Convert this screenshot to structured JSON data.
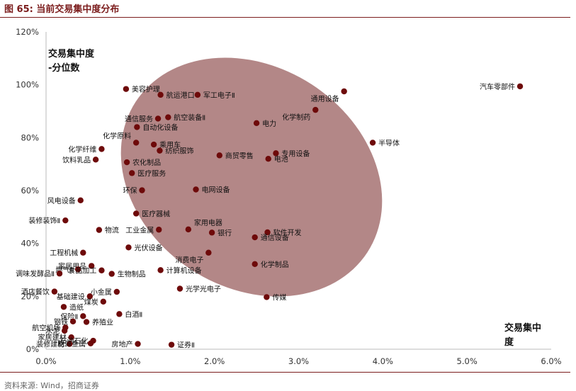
{
  "figure": {
    "title": "图 65:  当前交易集中度分布",
    "source": "资料来源: Wind，招商证券"
  },
  "colors": {
    "accent": "#7b1c1c",
    "point": "#6e0a0a",
    "ellipse": "#a67272"
  },
  "chart_data": {
    "type": "scatter",
    "xlabel": "交易集中度",
    "ylabel": "交易集中度-分位数",
    "xlim": [
      0,
      0.06
    ],
    "ylim": [
      0,
      1.2
    ],
    "xticks": [
      "0.0%",
      "1.0%",
      "2.0%",
      "3.0%",
      "4.0%",
      "5.0%",
      "6.0%"
    ],
    "yticks": [
      "0%",
      "20%",
      "40%",
      "60%",
      "80%",
      "100%",
      "120%"
    ],
    "grid": false,
    "points": [
      {
        "label": "汽车零部件",
        "x": 0.0563,
        "y": 0.994
      },
      {
        "label": "通用设备",
        "x": 0.0354,
        "y": 0.975
      },
      {
        "label": "化学制药",
        "x": 0.032,
        "y": 0.905
      },
      {
        "label": "半导体",
        "x": 0.0388,
        "y": 0.781
      },
      {
        "label": "美容护理",
        "x": 0.0095,
        "y": 0.984
      },
      {
        "label": "航运港口",
        "x": 0.0136,
        "y": 0.962
      },
      {
        "label": "军工电子Ⅱ",
        "x": 0.018,
        "y": 0.962
      },
      {
        "label": "通信服务",
        "x": 0.0133,
        "y": 0.872
      },
      {
        "label": "航空装备Ⅱ",
        "x": 0.0145,
        "y": 0.877
      },
      {
        "label": "电力",
        "x": 0.025,
        "y": 0.855
      },
      {
        "label": "自动化设备",
        "x": 0.0108,
        "y": 0.84
      },
      {
        "label": "化学原料",
        "x": 0.0107,
        "y": 0.781
      },
      {
        "label": "乘用车",
        "x": 0.0128,
        "y": 0.774
      },
      {
        "label": "化学纤维",
        "x": 0.0066,
        "y": 0.757
      },
      {
        "label": "纺织服饰",
        "x": 0.0135,
        "y": 0.751
      },
      {
        "label": "商贸零售",
        "x": 0.0206,
        "y": 0.733
      },
      {
        "label": "专用设备",
        "x": 0.0273,
        "y": 0.741
      },
      {
        "label": "电池",
        "x": 0.0264,
        "y": 0.72
      },
      {
        "label": "饮料乳品",
        "x": 0.0059,
        "y": 0.717
      },
      {
        "label": "农化制品",
        "x": 0.0096,
        "y": 0.707
      },
      {
        "label": "医疗服务",
        "x": 0.0102,
        "y": 0.666
      },
      {
        "label": "风电设备",
        "x": 0.0041,
        "y": 0.563
      },
      {
        "label": "环保",
        "x": 0.0114,
        "y": 0.601
      },
      {
        "label": "电网设备",
        "x": 0.0178,
        "y": 0.604
      },
      {
        "label": "装修装饰Ⅱ",
        "x": 0.0023,
        "y": 0.487
      },
      {
        "label": "医疗器械",
        "x": 0.0107,
        "y": 0.513
      },
      {
        "label": "物流",
        "x": 0.0063,
        "y": 0.451
      },
      {
        "label": "家用电器",
        "x": 0.0169,
        "y": 0.453
      },
      {
        "label": "工业金属",
        "x": 0.0134,
        "y": 0.452
      },
      {
        "label": "银行",
        "x": 0.0197,
        "y": 0.441
      },
      {
        "label": "软件开发",
        "x": 0.0263,
        "y": 0.442
      },
      {
        "label": "通信设备",
        "x": 0.0248,
        "y": 0.423
      },
      {
        "label": "光伏设备",
        "x": 0.0098,
        "y": 0.385
      },
      {
        "label": "工程机械",
        "x": 0.0044,
        "y": 0.365
      },
      {
        "label": "消费电子",
        "x": 0.0193,
        "y": 0.365
      },
      {
        "label": "家居用品",
        "x": 0.0054,
        "y": 0.315
      },
      {
        "label": "化学制品",
        "x": 0.0248,
        "y": 0.322
      },
      {
        "label": "燃气Ⅱ",
        "x": 0.0038,
        "y": 0.302
      },
      {
        "label": "计算机设备",
        "x": 0.0136,
        "y": 0.299
      },
      {
        "label": "食品加工",
        "x": 0.0066,
        "y": 0.298
      },
      {
        "label": "生物制品",
        "x": 0.0078,
        "y": 0.285
      },
      {
        "label": "调味发酵品Ⅱ",
        "x": 0.0016,
        "y": 0.286
      },
      {
        "label": "光学光电子",
        "x": 0.0159,
        "y": 0.229
      },
      {
        "label": "酒店餐饮",
        "x": 0.001,
        "y": 0.218
      },
      {
        "label": "小金属",
        "x": 0.0084,
        "y": 0.217
      },
      {
        "label": "基础建设",
        "x": 0.0052,
        "y": 0.2
      },
      {
        "label": "传媒",
        "x": 0.0262,
        "y": 0.197
      },
      {
        "label": "煤炭",
        "x": 0.0068,
        "y": 0.18
      },
      {
        "label": "造纸",
        "x": 0.0021,
        "y": 0.16
      },
      {
        "label": "白酒Ⅱ",
        "x": 0.0087,
        "y": 0.133
      },
      {
        "label": "保险Ⅱ",
        "x": 0.0044,
        "y": 0.125
      },
      {
        "label": "钢铁",
        "x": 0.0032,
        "y": 0.105
      },
      {
        "label": "养殖业",
        "x": 0.0048,
        "y": 0.103
      },
      {
        "label": "航空机场",
        "x": 0.0023,
        "y": 0.082
      },
      {
        "label": "水泥",
        "x": 0.0022,
        "y": 0.07
      },
      {
        "label": "家居建材",
        "x": 0.003,
        "y": 0.045
      },
      {
        "label": "石油石化",
        "x": 0.0056,
        "y": 0.032
      },
      {
        "label": "装修建材",
        "x": 0.0028,
        "y": 0.02
      },
      {
        "label": "能源金属",
        "x": 0.0053,
        "y": 0.022
      },
      {
        "label": "房地产",
        "x": 0.0109,
        "y": 0.02
      },
      {
        "label": "证券Ⅱ",
        "x": 0.0149,
        "y": 0.017
      }
    ]
  }
}
